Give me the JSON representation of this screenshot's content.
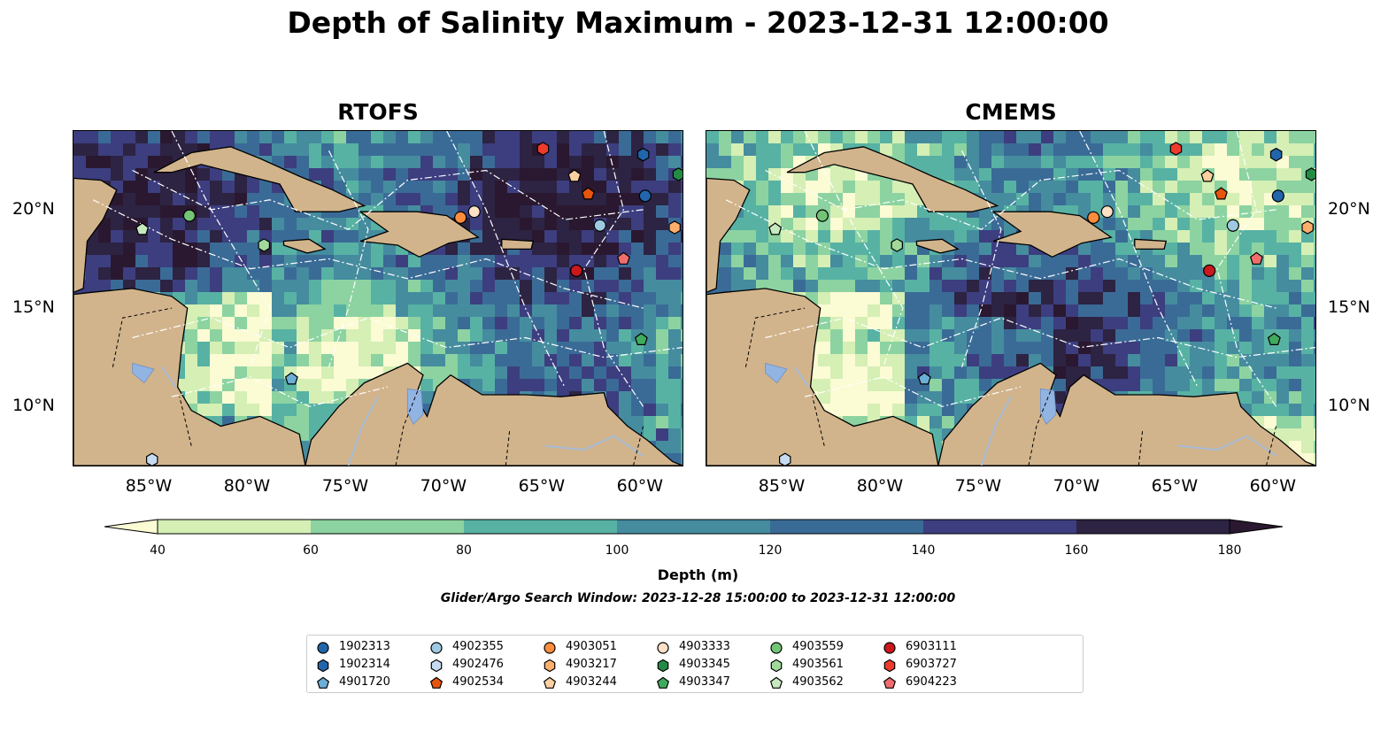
{
  "title": "Depth of Salinity Maximum - 2023-12-31 12:00:00",
  "panels": [
    {
      "title": "RTOFS"
    },
    {
      "title": "CMEMS"
    }
  ],
  "axes": {
    "lon_ticks": [
      "85°W",
      "80°W",
      "75°W",
      "70°W",
      "65°W",
      "60°W"
    ],
    "lat_ticks": [
      "20°N",
      "15°N",
      "10°N"
    ],
    "lon_range": [
      -89,
      -58
    ],
    "lat_range": [
      7,
      24
    ]
  },
  "colorbar": {
    "label": "Depth (m)",
    "ticks": [
      "40",
      "60",
      "80",
      "100",
      "120",
      "140",
      "160",
      "180"
    ],
    "colors": [
      "#d5efb5",
      "#8cd3a1",
      "#57b2a4",
      "#458c9f",
      "#3a6b96",
      "#3c3e7f",
      "#2d2342"
    ],
    "under_color": "#fbfbd4",
    "over_color": "#2a1830",
    "extend": "both"
  },
  "search_window": "Glider/Argo Search Window: 2023-12-28 15:00:00 to 2023-12-31 12:00:00",
  "colors": {
    "land": "#d2b48c",
    "lake": "#92b4e3",
    "river": "#a7bcd6"
  },
  "legend": [
    {
      "id": "1902313",
      "marker": "circle",
      "color": "#2166ac"
    },
    {
      "id": "1902314",
      "marker": "hexagon",
      "color": "#2166ac"
    },
    {
      "id": "4901720",
      "marker": "pentagon",
      "color": "#6baed6"
    },
    {
      "id": "4902355",
      "marker": "circle",
      "color": "#9ecae1"
    },
    {
      "id": "4902476",
      "marker": "hexagon",
      "color": "#c6dbef"
    },
    {
      "id": "4902534",
      "marker": "pentagon",
      "color": "#e6550d"
    },
    {
      "id": "4903051",
      "marker": "circle",
      "color": "#fd8d3c"
    },
    {
      "id": "4903217",
      "marker": "hexagon",
      "color": "#fdae6b"
    },
    {
      "id": "4903244",
      "marker": "pentagon",
      "color": "#fdd0a2"
    },
    {
      "id": "4903333",
      "marker": "circle",
      "color": "#fde0c5"
    },
    {
      "id": "4903345",
      "marker": "hexagon",
      "color": "#238b45"
    },
    {
      "id": "4903347",
      "marker": "pentagon",
      "color": "#41ab5d"
    },
    {
      "id": "4903559",
      "marker": "circle",
      "color": "#74c476"
    },
    {
      "id": "4903561",
      "marker": "hexagon",
      "color": "#a1d99b"
    },
    {
      "id": "4903562",
      "marker": "pentagon",
      "color": "#c7e9c0"
    },
    {
      "id": "6903111",
      "marker": "circle",
      "color": "#cb181d"
    },
    {
      "id": "6903727",
      "marker": "hexagon",
      "color": "#ef3b2c"
    },
    {
      "id": "6904223",
      "marker": "pentagon",
      "color": "#f16d6d"
    }
  ],
  "observations": [
    {
      "id": "1902313",
      "lon": -59.9,
      "lat": 20.7
    },
    {
      "id": "1902314",
      "lon": -60.0,
      "lat": 22.8
    },
    {
      "id": "4901720",
      "lon": -77.9,
      "lat": 11.4
    },
    {
      "id": "4902355",
      "lon": -62.2,
      "lat": 19.2
    },
    {
      "id": "4902476",
      "lon": -85.0,
      "lat": 7.3
    },
    {
      "id": "4902534",
      "lon": -62.8,
      "lat": 20.8
    },
    {
      "id": "4903051",
      "lon": -69.3,
      "lat": 19.6
    },
    {
      "id": "4903217",
      "lon": -58.4,
      "lat": 19.1
    },
    {
      "id": "4903244",
      "lon": -63.5,
      "lat": 21.7
    },
    {
      "id": "4903333",
      "lon": -68.6,
      "lat": 19.9
    },
    {
      "id": "4903345",
      "lon": -58.2,
      "lat": 21.8
    },
    {
      "id": "4903347",
      "lon": -60.1,
      "lat": 13.4
    },
    {
      "id": "4903559",
      "lon": -83.1,
      "lat": 19.7
    },
    {
      "id": "4903561",
      "lon": -79.3,
      "lat": 18.2
    },
    {
      "id": "4903562",
      "lon": -85.5,
      "lat": 19.0
    },
    {
      "id": "6903111",
      "lon": -63.4,
      "lat": 16.9
    },
    {
      "id": "6903727",
      "lon": -65.1,
      "lat": 23.1
    },
    {
      "id": "6904223",
      "lon": -61.0,
      "lat": 17.5
    }
  ]
}
